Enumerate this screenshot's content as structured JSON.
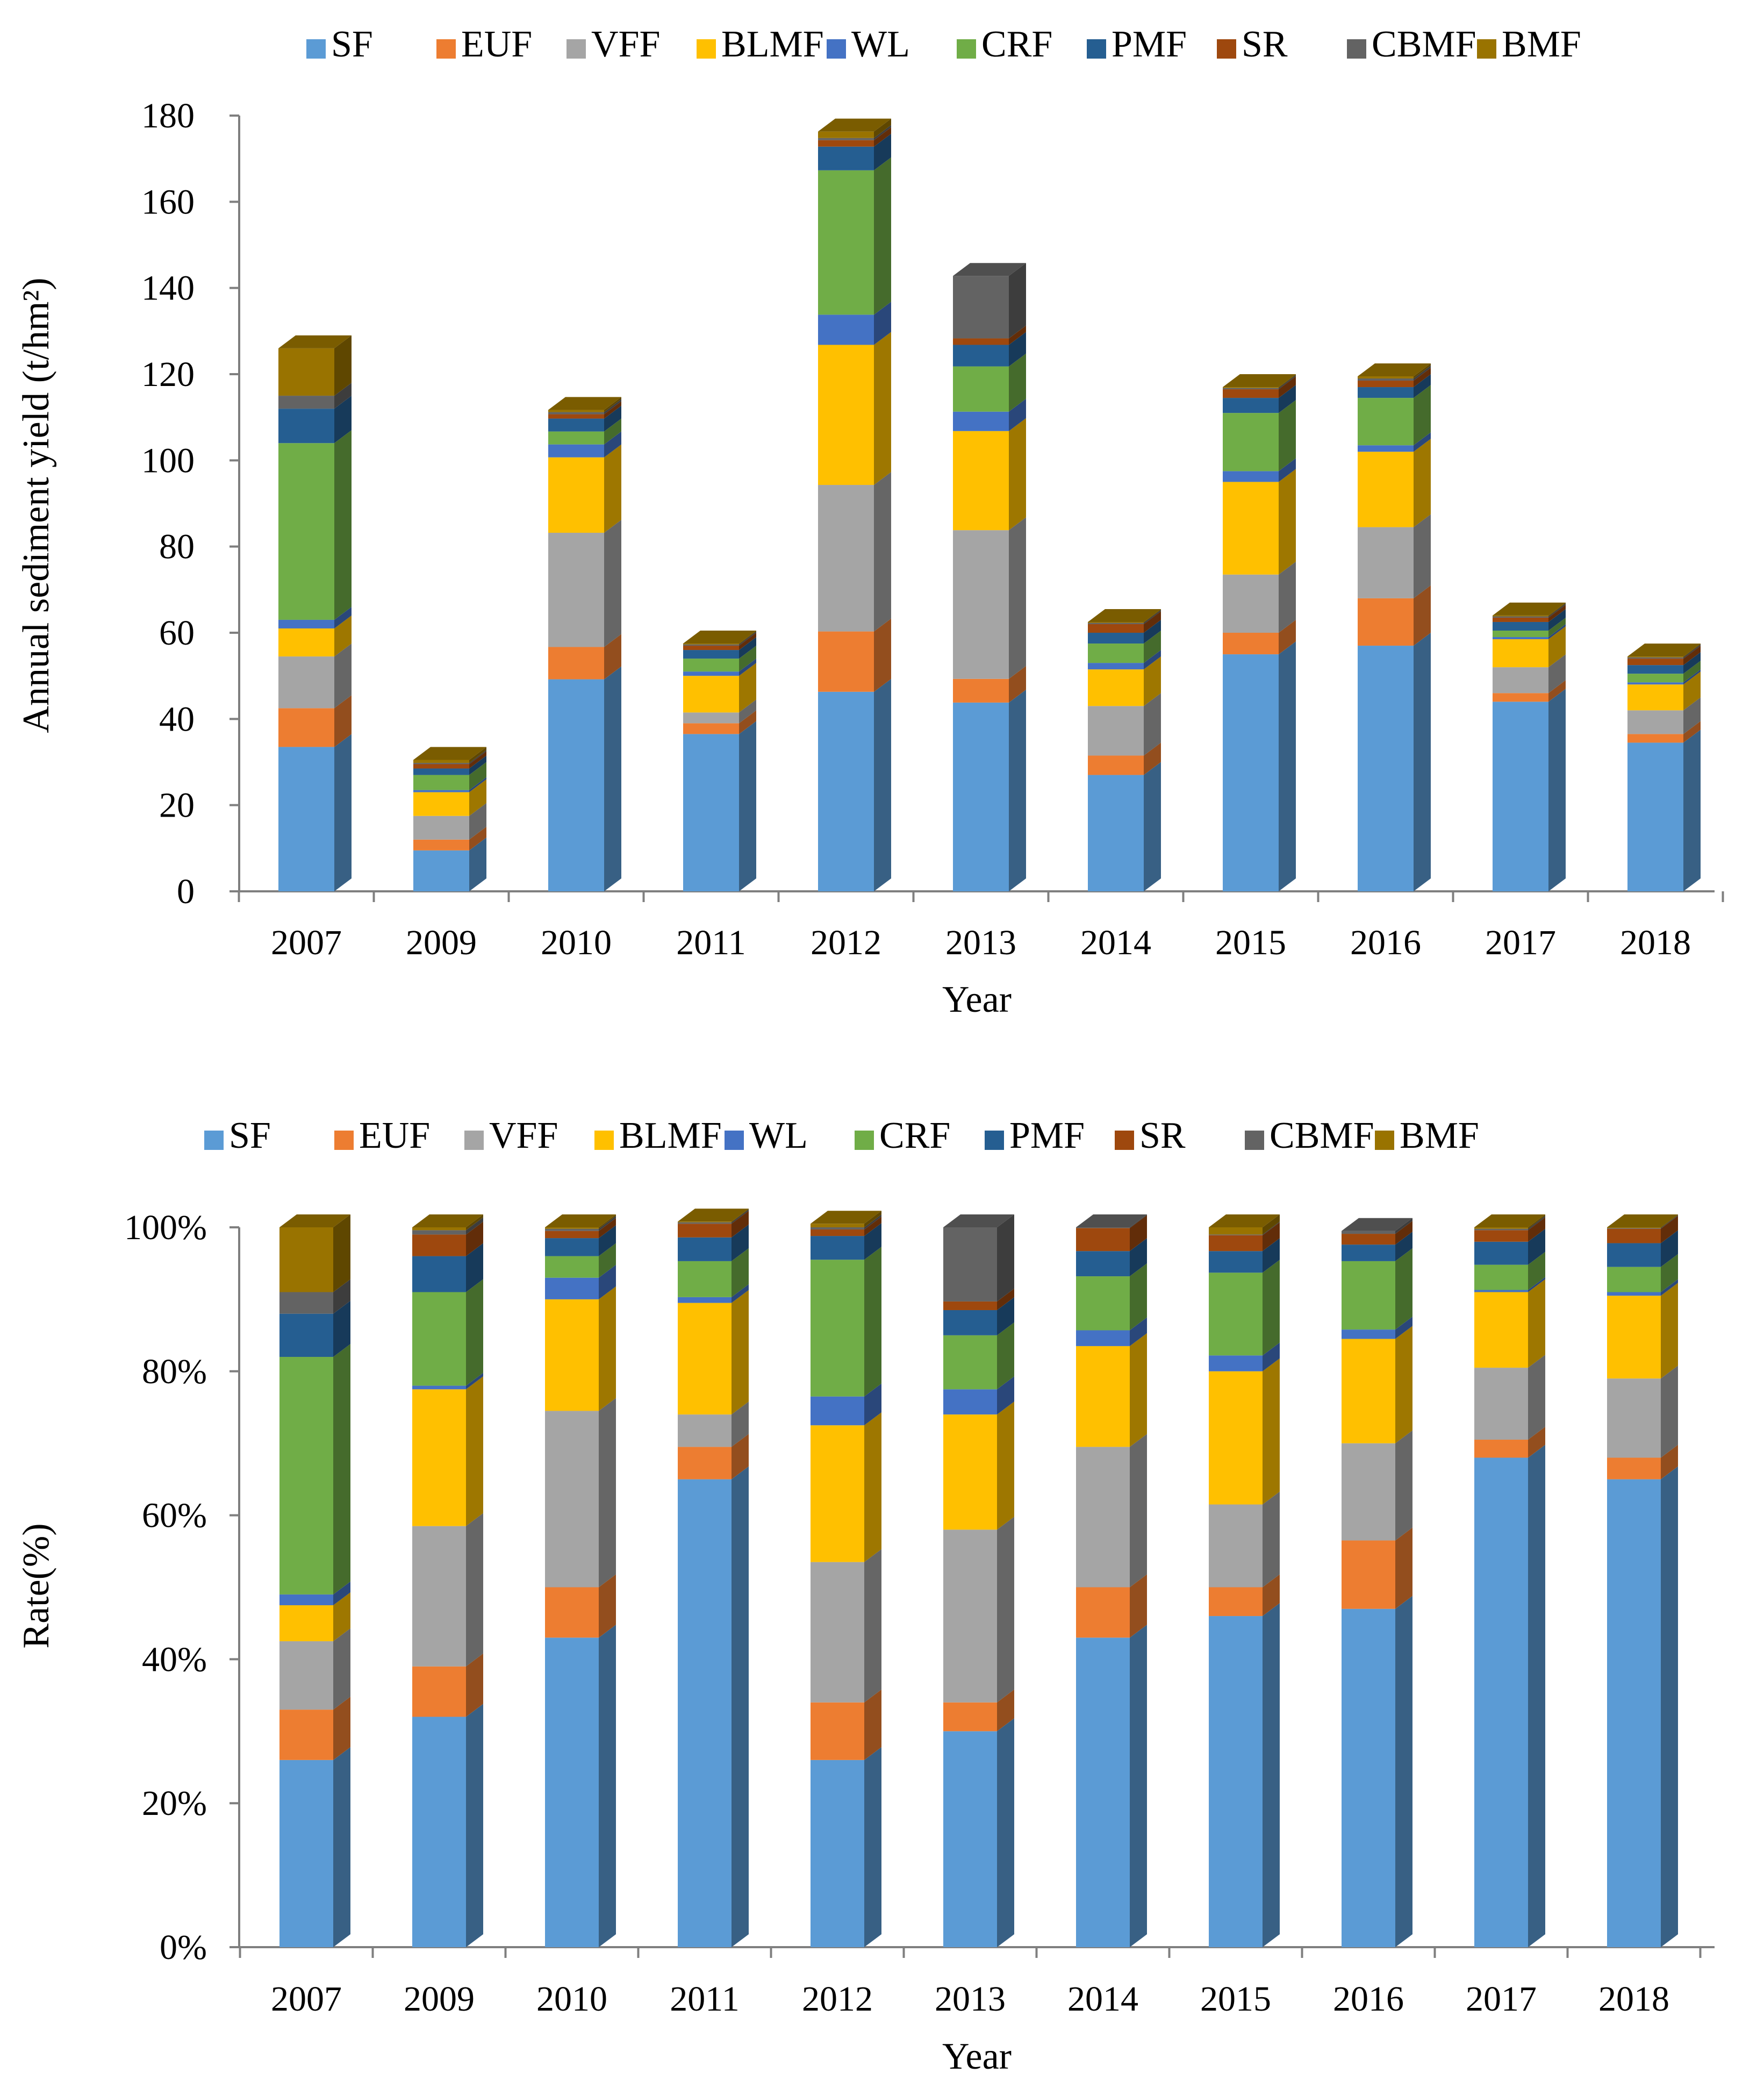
{
  "chart_data": [
    {
      "type": "bar",
      "stacked": true,
      "title": "",
      "xlabel": "Year",
      "ylabel": "Annual sediment yield (t/hm²)",
      "ylim": [
        0,
        180
      ],
      "ytick_labels": [
        "0",
        "20",
        "40",
        "60",
        "80",
        "100",
        "120",
        "140",
        "160",
        "180"
      ],
      "categories": [
        "2007",
        "2009",
        "2010",
        "2011",
        "2012",
        "2013",
        "2014",
        "2015",
        "2016",
        "2017",
        "2018"
      ],
      "series": [
        {
          "name": "SF",
          "values": [
            33.5,
            9.5,
            49.2,
            36.5,
            46.3,
            43.8,
            27.0,
            55.0,
            57.0,
            44.0,
            34.5
          ]
        },
        {
          "name": "EUF",
          "values": [
            9.0,
            2.5,
            7.5,
            2.5,
            14.0,
            5.5,
            4.5,
            5.0,
            11.0,
            2.0,
            2.0
          ]
        },
        {
          "name": "VFF",
          "values": [
            12.0,
            5.5,
            26.5,
            2.5,
            34.0,
            34.5,
            11.5,
            13.5,
            16.5,
            6.0,
            5.5
          ]
        },
        {
          "name": "BLMF",
          "values": [
            6.5,
            5.5,
            17.5,
            8.5,
            32.5,
            23.0,
            8.5,
            21.5,
            17.5,
            6.5,
            6.0
          ]
        },
        {
          "name": "WL",
          "values": [
            2.0,
            0.5,
            3.0,
            1.0,
            7.0,
            4.5,
            1.5,
            2.5,
            1.5,
            0.5,
            0.5
          ]
        },
        {
          "name": "CRF",
          "values": [
            41.0,
            3.5,
            3.0,
            3.0,
            33.5,
            10.5,
            4.5,
            13.5,
            11.0,
            1.5,
            2.0
          ]
        },
        {
          "name": "PMF",
          "values": [
            8.0,
            1.5,
            3.0,
            2.0,
            5.5,
            5.0,
            2.5,
            3.5,
            2.5,
            2.0,
            2.0
          ]
        },
        {
          "name": "SR",
          "values": [
            0.0,
            1.0,
            1.0,
            1.0,
            1.5,
            1.5,
            2.0,
            2.0,
            1.5,
            1.0,
            1.5
          ]
        },
        {
          "name": "CBMF",
          "values": [
            3.0,
            0.3,
            0.5,
            0.3,
            0.5,
            14.5,
            0.3,
            0.3,
            0.5,
            0.3,
            0.3
          ]
        },
        {
          "name": "BMF",
          "values": [
            11.0,
            0.7,
            0.5,
            0.2,
            1.5,
            0.0,
            0.2,
            0.2,
            0.5,
            0.2,
            0.2
          ]
        }
      ]
    },
    {
      "type": "bar",
      "stacked": true,
      "percent": true,
      "title": "",
      "xlabel": "Year",
      "ylabel": "Rate(%)",
      "ylim": [
        0,
        100
      ],
      "ytick_labels": [
        "0%",
        "20%",
        "40%",
        "60%",
        "80%",
        "100%"
      ],
      "categories": [
        "2007",
        "2009",
        "2010",
        "2011",
        "2012",
        "2013",
        "2014",
        "2015",
        "2016",
        "2017",
        "2018"
      ],
      "series": [
        {
          "name": "SF",
          "values": [
            26,
            32,
            43,
            65,
            26,
            30,
            43,
            46,
            47,
            68,
            65
          ]
        },
        {
          "name": "EUF",
          "values": [
            7,
            7,
            7,
            4.5,
            8,
            4,
            7,
            4,
            9.5,
            2.5,
            3
          ]
        },
        {
          "name": "VFF",
          "values": [
            9.5,
            19.5,
            24.5,
            4.5,
            19.5,
            24,
            19.5,
            11.5,
            13.5,
            10,
            11
          ]
        },
        {
          "name": "BLMF",
          "values": [
            5,
            19,
            15.5,
            15.5,
            19,
            16,
            14,
            18.5,
            14.5,
            10.5,
            11.5
          ]
        },
        {
          "name": "WL",
          "values": [
            1.5,
            0.5,
            3,
            0.8,
            4,
            3.5,
            2.2,
            2.2,
            1.3,
            0.3,
            0.5
          ]
        },
        {
          "name": "CRF",
          "values": [
            33,
            13,
            3,
            5,
            19,
            7.5,
            7.5,
            11.5,
            9.5,
            3.5,
            3.5
          ]
        },
        {
          "name": "PMF",
          "values": [
            6,
            5,
            2.5,
            3.3,
            3.3,
            3.5,
            3.5,
            3,
            2.3,
            3.2,
            3.3
          ]
        },
        {
          "name": "SR",
          "values": [
            0,
            3,
            1,
            1.9,
            0.9,
            1.2,
            3.2,
            2.2,
            1.5,
            1.6,
            2
          ]
        },
        {
          "name": "CBMF",
          "values": [
            3,
            0.6,
            0.3,
            0.2,
            0.3,
            10.3,
            0.1,
            0.1,
            0.4,
            0.2,
            0.1
          ]
        },
        {
          "name": "BMF",
          "values": [
            9,
            0.4,
            0.2,
            0.1,
            0.5,
            0,
            0,
            1,
            0,
            0.2,
            0.1
          ]
        }
      ]
    }
  ],
  "colors": {
    "SF": "#5b9bd5",
    "EUF": "#ed7d31",
    "VFF": "#a5a5a5",
    "BLMF": "#ffc000",
    "WL": "#4472c4",
    "CRF": "#70ad47",
    "PMF": "#255e91",
    "SR": "#9e480e",
    "CBMF": "#636363",
    "BMF": "#997300",
    "axis": "#7f7f7f"
  }
}
